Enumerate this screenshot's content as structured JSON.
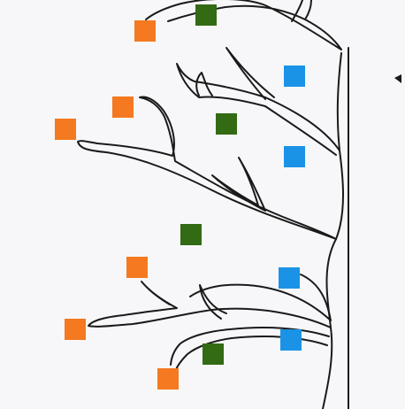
{
  "colors": {
    "background": "#f7f7f9",
    "outline": "#1a1a1a",
    "orange": "#f47920",
    "green": "#336a14",
    "blue": "#1a93e6"
  },
  "markers": [
    {
      "name": "orange-marker-1",
      "color": "orange"
    },
    {
      "name": "orange-marker-2",
      "color": "orange"
    },
    {
      "name": "orange-marker-3",
      "color": "orange"
    },
    {
      "name": "orange-marker-4",
      "color": "orange"
    },
    {
      "name": "orange-marker-5",
      "color": "orange"
    },
    {
      "name": "orange-marker-6",
      "color": "orange"
    },
    {
      "name": "green-marker-1",
      "color": "green"
    },
    {
      "name": "green-marker-2",
      "color": "green"
    },
    {
      "name": "green-marker-3",
      "color": "green"
    },
    {
      "name": "green-marker-4",
      "color": "green"
    },
    {
      "name": "blue-marker-1",
      "color": "blue"
    },
    {
      "name": "blue-marker-2",
      "color": "blue"
    },
    {
      "name": "blue-marker-3",
      "color": "blue"
    },
    {
      "name": "blue-marker-4",
      "color": "blue"
    }
  ]
}
